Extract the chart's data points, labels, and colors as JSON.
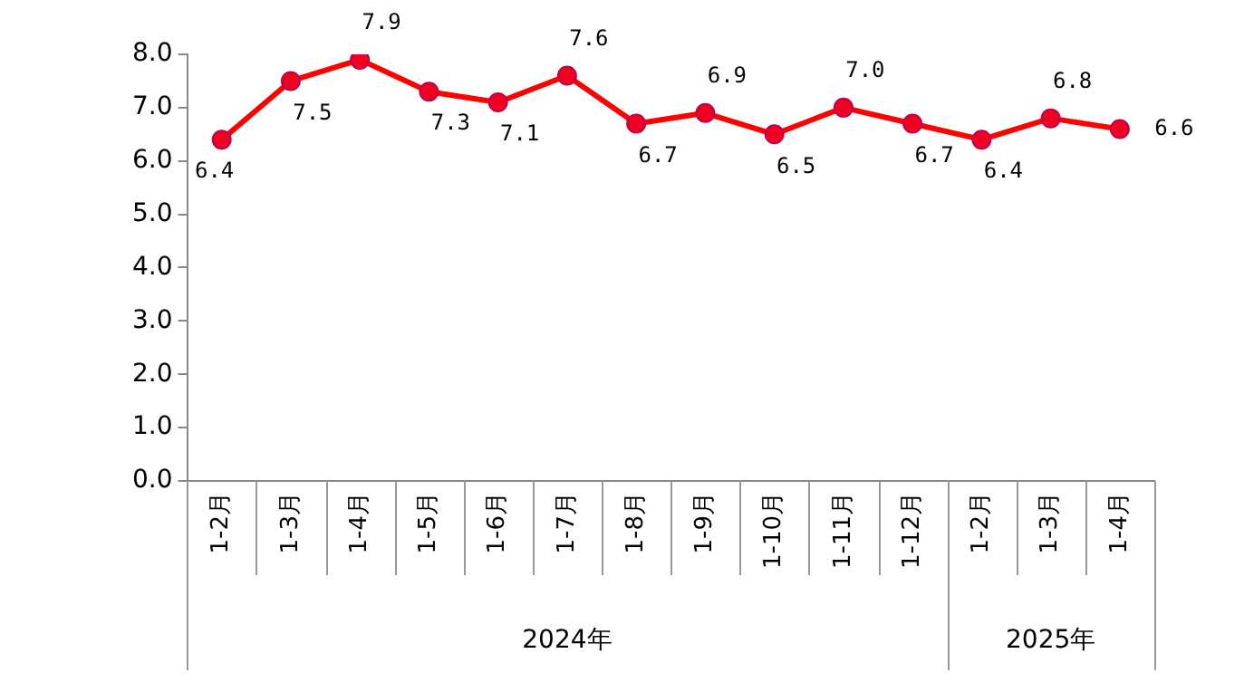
{
  "chart_data": {
    "type": "line",
    "categories": [
      "1-2月",
      "1-3月",
      "1-4月",
      "1-5月",
      "1-6月",
      "1-7月",
      "1-8月",
      "1-9月",
      "1-10月",
      "1-11月",
      "1-12月",
      "1-2月",
      "1-3月",
      "1-4月"
    ],
    "series": [
      {
        "color": "#ff0000",
        "values": [
          6.4,
          7.5,
          7.9,
          7.3,
          7.1,
          7.6,
          6.7,
          6.9,
          6.5,
          7.0,
          6.7,
          6.4,
          6.8,
          6.6
        ],
        "value_labels": [
          "6.4",
          "7.5",
          "7.9",
          "7.3",
          "7.1",
          "7.6",
          "6.7",
          "6.9",
          "6.5",
          "7.0",
          "6.7",
          "6.4",
          "6.8",
          "6.6"
        ]
      }
    ],
    "ylim": [
      0,
      8
    ],
    "yticks": [
      {
        "value": 0,
        "label": "0.0"
      },
      {
        "value": 1,
        "label": "1.0"
      },
      {
        "value": 2,
        "label": "2.0"
      },
      {
        "value": 3,
        "label": "3.0"
      },
      {
        "value": 4,
        "label": "4.0"
      },
      {
        "value": 5,
        "label": "5.0"
      },
      {
        "value": 6,
        "label": "6.0"
      },
      {
        "value": 7,
        "label": "7.0"
      },
      {
        "value": 8,
        "label": "8.0"
      }
    ],
    "annotations": [
      "2024年",
      "2025年"
    ],
    "grid": false,
    "legend": false,
    "marker": "circle",
    "line_style": "solid"
  }
}
